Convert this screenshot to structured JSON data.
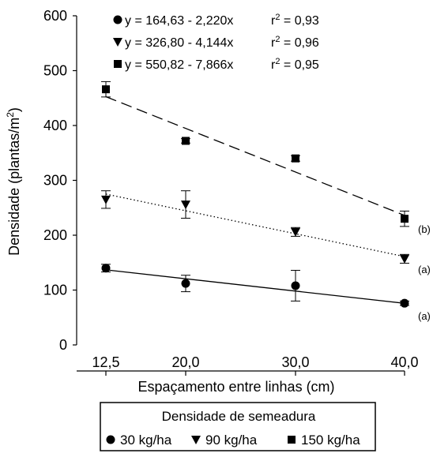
{
  "chart_data": {
    "type": "scatter",
    "xlabel": "Espaçamento entre linhas (cm)",
    "ylabel": "Densidade (plantas/m²)",
    "x": [
      12.5,
      20.0,
      30.0,
      40.0
    ],
    "x_tick_labels": [
      "12,5",
      "20,0",
      "30,0",
      "40,0"
    ],
    "ylim": [
      0,
      600
    ],
    "y_ticks": [
      0,
      100,
      200,
      300,
      400,
      500,
      600
    ],
    "grid": false,
    "series": [
      {
        "name": "30 kg/ha",
        "marker": "circle",
        "values": [
          140,
          112,
          108,
          76
        ],
        "error": [
          7,
          15,
          28,
          4
        ],
        "fit": {
          "intercept": 164.63,
          "slope": -2.22,
          "style": "solid"
        },
        "equation": "y = 164,63 - 2,220x",
        "r2": "r² = 0,93",
        "group_label": "(a)"
      },
      {
        "name": "90 kg/ha",
        "marker": "triangle-down",
        "values": [
          265,
          256,
          206,
          157
        ],
        "error": [
          16,
          25,
          8,
          8
        ],
        "fit": {
          "intercept": 326.8,
          "slope": -4.144,
          "style": "dotted"
        },
        "equation": "y = 326,80 - 4,144x",
        "r2": "r² = 0,96",
        "group_label": "(a)"
      },
      {
        "name": "150 kg/ha",
        "marker": "square",
        "values": [
          466,
          372,
          340,
          230
        ],
        "error": [
          14,
          4,
          5,
          14
        ],
        "fit": {
          "intercept": 550.82,
          "slope": -7.866,
          "style": "dashed"
        },
        "equation": "y = 550,82 - 7,866x",
        "r2": "r² = 0,95",
        "group_label": "(b)"
      }
    ],
    "legend": {
      "title": "Densidade de semeadura",
      "placement": "bottom"
    }
  }
}
